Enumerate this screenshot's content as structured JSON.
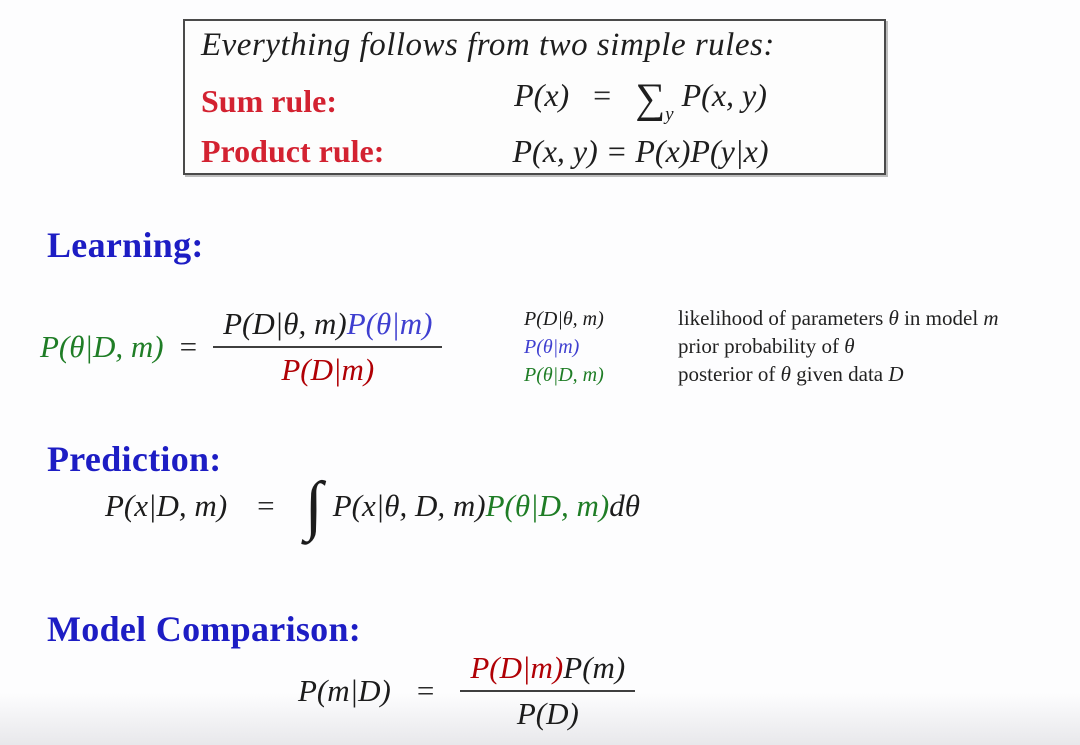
{
  "slide": {
    "kind": "lecture-slide",
    "colors": {
      "heading_blue": "#1d1dc4",
      "rule_label_red": "#d32231",
      "math_red": "#b00005",
      "math_blue": "#3f3fd0",
      "math_green": "#1f7d26",
      "math_black": "#1c1c1c"
    }
  },
  "rules_box": {
    "intro": "Everything follows from two simple rules:",
    "sum_label": "Sum rule:",
    "sum_lhs": "P(x)",
    "sum_eq": "=",
    "sum_sigma": "∑",
    "sum_sub": "y",
    "sum_rhs": " P(x, y)",
    "product_label": "Product rule:",
    "product_formula": "P(x, y) = P(x)P(y|x)"
  },
  "learning": {
    "heading": "Learning:",
    "lhs": "P(θ|D, m)",
    "equals": "=",
    "num_black": "P(D|θ, m)",
    "num_blue": "P(θ|m)",
    "den_red": "P(D|m)",
    "legend": [
      {
        "formula": "P(D|θ, m)",
        "color": "black",
        "parts": [
          "likelihood of parameters ",
          "θ",
          " in model ",
          "m"
        ]
      },
      {
        "formula": "P(θ|m)",
        "color": "blue",
        "parts": [
          "prior probability of ",
          "θ"
        ]
      },
      {
        "formula": "P(θ|D, m)",
        "color": "green",
        "parts": [
          "posterior of ",
          "θ",
          " given data ",
          "D"
        ]
      }
    ]
  },
  "prediction": {
    "heading": "Prediction:",
    "lhs": "P(x|D, m)",
    "equals": "=",
    "integral": "∫",
    "integrand_black": "P(x|θ, D, m)",
    "integrand_green": "P(θ|D, m)",
    "differential": "dθ"
  },
  "model_comparison": {
    "heading": "Model Comparison:",
    "lhs": "P(m|D)",
    "equals": "=",
    "num_red": "P(D|m)",
    "num_black": "P(m)",
    "den_black": "P(D)"
  }
}
